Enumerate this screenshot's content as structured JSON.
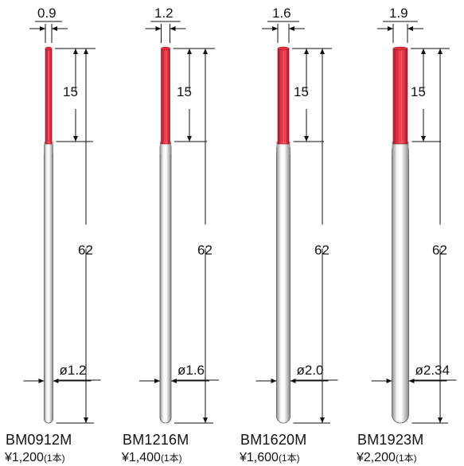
{
  "colors": {
    "tip_red": "#e8303f",
    "tip_red_dark": "#b31a27",
    "shank_light": "#f1f1f1",
    "shank_dark": "#9a9a9a",
    "dim_line": "#111111",
    "accent_blue": "#1e2f7a"
  },
  "corner_glyph": "",
  "shared_dims": {
    "tip_length": "15",
    "total_length": "62"
  },
  "products": [
    {
      "model": "BM0912M",
      "price": "¥1,200",
      "unit": "(1本)",
      "tip_diameter": "0.9",
      "shank_diameter": "ø1.2"
    },
    {
      "model": "BM1216M",
      "price": "¥1,400",
      "unit": "(1本)",
      "tip_diameter": "1.2",
      "shank_diameter": "ø1.6"
    },
    {
      "model": "BM1620M",
      "price": "¥1,600",
      "unit": "(1本)",
      "tip_diameter": "1.6",
      "shank_diameter": "ø2.0"
    },
    {
      "model": "BM1923M",
      "price": "¥2,200",
      "unit": "(1本)",
      "tip_diameter": "1.9",
      "shank_diameter": "ø2.34"
    }
  ]
}
